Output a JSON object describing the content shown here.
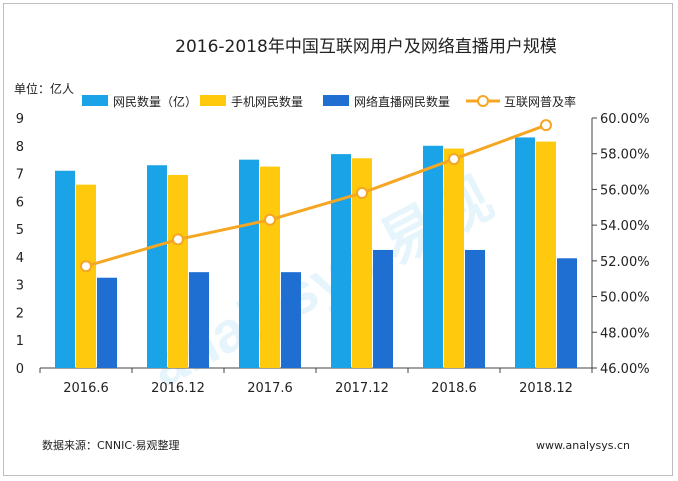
{
  "chart_data": {
    "type": "bar",
    "title": "2016-2018年中国互联网用户及网络直播用户规模",
    "unit_label": "单位：亿人",
    "categories": [
      "2016.6",
      "2016.12",
      "2017.6",
      "2017.12",
      "2018.6",
      "2018.12"
    ],
    "series": [
      {
        "name": "网民数量（亿）",
        "type": "bar",
        "axis": "left",
        "color": "#1aa3e6",
        "values": [
          7.1,
          7.3,
          7.5,
          7.7,
          8.0,
          8.3
        ]
      },
      {
        "name": "手机网民数量",
        "type": "bar",
        "axis": "left",
        "color": "#ffc90e",
        "values": [
          6.6,
          6.95,
          7.25,
          7.55,
          7.9,
          8.15
        ]
      },
      {
        "name": "网络直播网民数量",
        "type": "bar",
        "axis": "left",
        "color": "#1f6ed1",
        "values": [
          3.25,
          3.45,
          3.45,
          4.25,
          4.25,
          3.95
        ]
      },
      {
        "name": "互联网普及率",
        "type": "line",
        "axis": "right",
        "color": "#f5a623",
        "values": [
          51.7,
          53.2,
          54.3,
          55.8,
          57.7,
          59.6
        ]
      }
    ],
    "y_left": {
      "min": 0,
      "max": 9,
      "ticks": [
        "0",
        "1",
        "2",
        "3",
        "4",
        "5",
        "6",
        "7",
        "8",
        "9"
      ]
    },
    "y_right": {
      "min": 46,
      "max": 60,
      "ticks": [
        "46.00%",
        "48.00%",
        "50.00%",
        "52.00%",
        "54.00%",
        "56.00%",
        "58.00%",
        "60.00%"
      ]
    },
    "legend_position": "top",
    "grid": false,
    "source": "数据来源：CNNIC·易观整理",
    "website": "www.analysys.cn",
    "watermark": "analysys 易观"
  }
}
